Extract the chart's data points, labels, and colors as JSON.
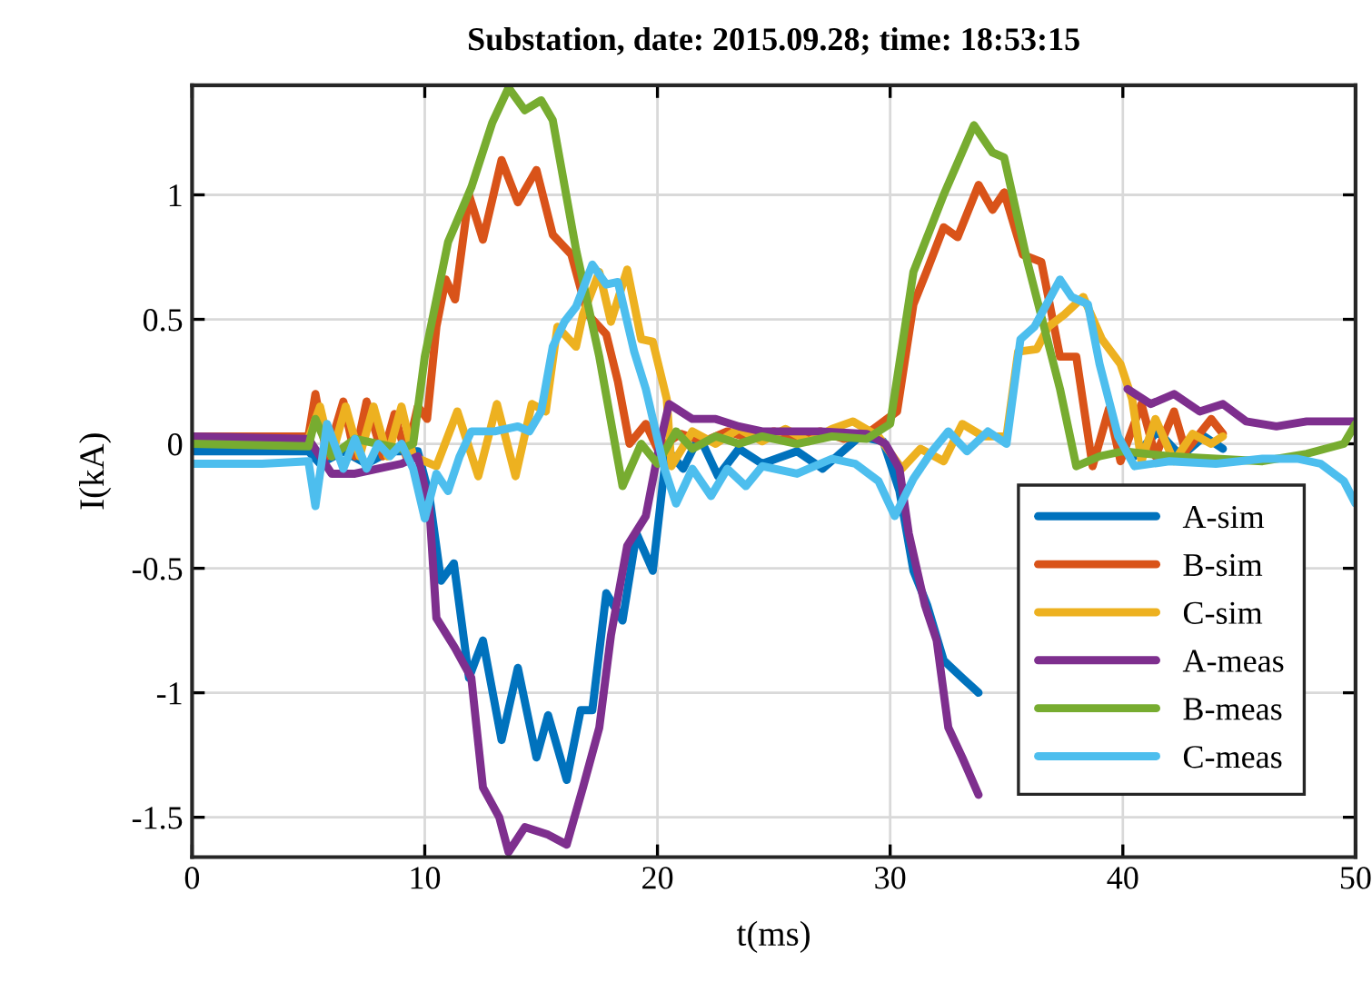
{
  "chart_data": {
    "type": "line",
    "title": "Substation, date: 2015.09.28; time: 18:53:15",
    "xlabel": "t(ms)",
    "ylabel": "I(kA)",
    "xlim": [
      0,
      50
    ],
    "xticks": [
      0,
      10,
      20,
      30,
      40,
      50
    ],
    "ylim": [
      -1.66,
      1.44
    ],
    "yticks": [
      -1.5,
      -1,
      -0.5,
      0,
      0.5,
      1
    ],
    "grid": true,
    "legend": "bottom right",
    "line_style": "solid",
    "marker": "none",
    "series": [
      {
        "name": "A-sim",
        "color": "#0072bd",
        "x": [
          0,
          5,
          5.5,
          6.5,
          7.5,
          8.5,
          9.7,
          10.2,
          10.7,
          11.25,
          11.9,
          12.5,
          13.3,
          14,
          14.8,
          15.3,
          16.1,
          16.7,
          17.2,
          17.8,
          18.5,
          19.1,
          19.8,
          20.4,
          21.1,
          21.8,
          22.6,
          23.5,
          24.5,
          26,
          27.1,
          28.7,
          29.7,
          30.4,
          31,
          31.6,
          32.3,
          33.1,
          33.8,
          34.5,
          40.5,
          41.5,
          42.5,
          43.5,
          44.3
        ],
        "values": [
          -0.03,
          -0.03,
          -0.08,
          -0.03,
          -0.08,
          -0.03,
          -0.03,
          -0.21,
          -0.55,
          -0.48,
          -0.94,
          -0.79,
          -1.19,
          -0.9,
          -1.26,
          -1.09,
          -1.35,
          -1.07,
          -1.07,
          -0.6,
          -0.71,
          -0.36,
          -0.51,
          -0.02,
          -0.1,
          0.03,
          -0.13,
          -0.02,
          -0.08,
          -0.03,
          -0.1,
          0.03,
          0.01,
          -0.19,
          -0.51,
          -0.65,
          -0.87,
          -0.94,
          -1.0,
          null,
          -0.05,
          0.05,
          -0.05,
          0.03,
          -0.02
        ]
      },
      {
        "name": "B-sim",
        "color": "#d95319",
        "x": [
          0,
          5,
          5.3,
          5.8,
          6.5,
          7,
          7.5,
          8.2,
          8.7,
          9.2,
          9.7,
          10.1,
          10.5,
          10.9,
          11.3,
          11.9,
          12.5,
          13.3,
          14,
          14.8,
          15.5,
          16.3,
          17,
          17.8,
          18.3,
          18.8,
          19.5,
          20,
          21,
          22,
          23,
          24,
          25,
          26,
          27,
          28,
          29,
          30.3,
          31,
          31.6,
          32.3,
          32.9,
          33.8,
          34.4,
          34.9,
          35.7,
          36.5,
          37.3,
          38,
          38.7,
          39.4,
          39.9,
          40.8,
          41.4,
          42.2,
          42.7,
          43.8,
          44.3
        ],
        "values": [
          0.03,
          0.03,
          0.2,
          -0.05,
          0.17,
          -0.05,
          0.17,
          -0.05,
          0.12,
          -0.05,
          0.15,
          0.1,
          0.47,
          0.66,
          0.58,
          1.0,
          0.82,
          1.14,
          0.97,
          1.1,
          0.84,
          0.76,
          0.52,
          0.44,
          0.25,
          0.0,
          0.08,
          -0.02,
          0.04,
          0.01,
          0.05,
          0.02,
          0.05,
          0.02,
          0.05,
          0.02,
          0.04,
          0.13,
          0.56,
          0.7,
          0.87,
          0.83,
          1.04,
          0.94,
          1.01,
          0.76,
          0.73,
          0.35,
          0.35,
          -0.09,
          0.14,
          -0.07,
          0.16,
          -0.05,
          0.13,
          -0.03,
          0.1,
          0.04
        ]
      },
      {
        "name": "C-sim",
        "color": "#edb120",
        "x": [
          5,
          5.5,
          6,
          6.6,
          7.2,
          7.8,
          8.4,
          9,
          9.5,
          10.5,
          11.4,
          12.3,
          13.1,
          13.9,
          14.6,
          15.2,
          15.7,
          16.5,
          16.8,
          17.5,
          18,
          18.7,
          19.3,
          19.8,
          20.4,
          20.6,
          21.5,
          22.5,
          23.5,
          24.5,
          25.5,
          26.5,
          27.5,
          28.4,
          29.5,
          30.5,
          31.3,
          32.3,
          33.1,
          34,
          35,
          35.5,
          36.3,
          36.8,
          37.5,
          38.3,
          39.1,
          39.9,
          40.4,
          40.8,
          41.4,
          42.2,
          43,
          43.8,
          44.3
        ],
        "values": [
          0.02,
          0.15,
          -0.05,
          0.15,
          -0.05,
          0.15,
          -0.05,
          0.15,
          -0.05,
          -0.09,
          0.13,
          -0.13,
          0.16,
          -0.13,
          0.16,
          0.13,
          0.47,
          0.39,
          0.52,
          0.69,
          0.49,
          0.7,
          0.42,
          0.41,
          0.18,
          -0.09,
          0.05,
          0.0,
          0.06,
          0.01,
          0.06,
          0.01,
          0.06,
          0.09,
          0.03,
          -0.1,
          -0.02,
          -0.07,
          0.08,
          0.03,
          0.03,
          0.37,
          0.38,
          0.47,
          0.52,
          0.59,
          0.42,
          0.32,
          0.18,
          -0.07,
          0.1,
          -0.07,
          0.04,
          0.0,
          0.03
        ]
      },
      {
        "name": "A-meas",
        "color": "#7e2f8e",
        "x": [
          0,
          5,
          5.5,
          6,
          7,
          8,
          9,
          9.7,
          10.2,
          10.5,
          11.3,
          12,
          12.5,
          13.2,
          13.6,
          14.3,
          15.3,
          16.1,
          16.8,
          17.5,
          18,
          18.7,
          19.5,
          20.1,
          20.5,
          21.5,
          22.5,
          23.5,
          24.5,
          27,
          29,
          29.8,
          30.4,
          30.8,
          31.5,
          32,
          32.5,
          33.1,
          33.8,
          34.5,
          40.2,
          41.2,
          42.2,
          43.3,
          44.3,
          45.3,
          46.6,
          47.9,
          49.2,
          50
        ],
        "values": [
          0.03,
          0.02,
          -0.05,
          -0.12,
          -0.12,
          -0.1,
          -0.08,
          -0.05,
          -0.26,
          -0.7,
          -0.82,
          -0.94,
          -1.38,
          -1.5,
          -1.64,
          -1.54,
          -1.57,
          -1.61,
          -1.38,
          -1.14,
          -0.77,
          -0.41,
          -0.29,
          0.0,
          0.16,
          0.1,
          0.1,
          0.07,
          0.05,
          0.05,
          0.04,
          0.0,
          -0.1,
          -0.36,
          -0.65,
          -0.79,
          -1.14,
          -1.26,
          -1.41,
          null,
          0.22,
          0.16,
          0.2,
          0.13,
          0.16,
          0.09,
          0.07,
          0.09,
          0.09,
          0.09
        ]
      },
      {
        "name": "B-meas",
        "color": "#77ac30",
        "x": [
          0,
          5,
          5.3,
          6,
          7,
          8,
          9,
          9.5,
          10,
          11,
          12,
          12.9,
          13.6,
          14.3,
          15,
          15.5,
          16.5,
          17.5,
          18.5,
          19.3,
          20,
          20.8,
          21.5,
          22.5,
          23.5,
          24.5,
          26,
          27.5,
          29,
          30,
          31,
          32.3,
          33.6,
          34.4,
          34.9,
          35.9,
          37.3,
          38,
          39,
          40,
          42,
          44,
          46,
          47.9,
          49.5,
          50
        ],
        "values": [
          0.0,
          -0.01,
          0.1,
          -0.05,
          0.02,
          0.0,
          -0.02,
          0.0,
          0.35,
          0.81,
          1.03,
          1.29,
          1.43,
          1.34,
          1.38,
          1.3,
          0.78,
          0.35,
          -0.17,
          0.0,
          -0.08,
          0.05,
          -0.02,
          0.03,
          0.0,
          0.03,
          0.0,
          0.03,
          0.02,
          0.08,
          0.69,
          1.0,
          1.28,
          1.17,
          1.15,
          0.73,
          0.22,
          -0.09,
          -0.05,
          -0.03,
          -0.05,
          -0.06,
          -0.07,
          -0.04,
          0.0,
          0.08
        ]
      },
      {
        "name": "C-meas",
        "color": "#4dbeee",
        "x": [
          0,
          3,
          5,
          5.3,
          5.8,
          6.5,
          7,
          7.5,
          8,
          8.5,
          9,
          9.5,
          10,
          10.5,
          11,
          11.5,
          12,
          13,
          14,
          14.5,
          15,
          15.5,
          16,
          16.5,
          17.2,
          17.8,
          18.3,
          19,
          19.5,
          20.3,
          20.8,
          21.5,
          22.3,
          23,
          23.8,
          24.5,
          26,
          27.5,
          28.5,
          29.5,
          30.2,
          31,
          31.8,
          32.5,
          33.3,
          34.2,
          35,
          35.6,
          36.2,
          37.3,
          37.8,
          38.5,
          39,
          39.8,
          40.5,
          42,
          44,
          46,
          47.5,
          48.5,
          49.5,
          50
        ],
        "values": [
          -0.08,
          -0.08,
          -0.07,
          -0.25,
          0.08,
          -0.1,
          0.02,
          -0.1,
          0.0,
          -0.05,
          0.0,
          -0.1,
          -0.3,
          -0.12,
          -0.19,
          -0.05,
          0.05,
          0.05,
          0.07,
          0.05,
          0.13,
          0.39,
          0.49,
          0.55,
          0.72,
          0.64,
          0.65,
          0.37,
          0.22,
          -0.1,
          -0.24,
          -0.1,
          -0.21,
          -0.1,
          -0.17,
          -0.09,
          -0.12,
          -0.06,
          -0.08,
          -0.15,
          -0.29,
          -0.14,
          -0.03,
          0.05,
          -0.03,
          0.05,
          0.0,
          0.42,
          0.47,
          0.66,
          0.59,
          0.56,
          0.32,
          0.03,
          -0.09,
          -0.07,
          -0.08,
          -0.06,
          -0.06,
          -0.08,
          -0.15,
          -0.24
        ]
      }
    ]
  }
}
